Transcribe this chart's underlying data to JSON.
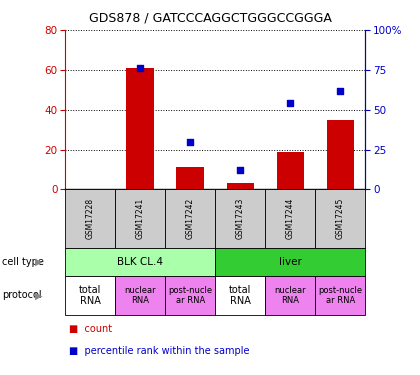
{
  "title": "GDS878 / GATCCCAGGCTGGGCCGGGA",
  "samples": [
    "GSM17228",
    "GSM17241",
    "GSM17242",
    "GSM17243",
    "GSM17244",
    "GSM17245"
  ],
  "counts": [
    0,
    61,
    11,
    3,
    19,
    35
  ],
  "percentiles": [
    null,
    76,
    30,
    12,
    54,
    62
  ],
  "cell_types": [
    {
      "label": "BLK CL.4",
      "span": [
        0,
        3
      ],
      "color": "#aaffaa"
    },
    {
      "label": "liver",
      "span": [
        3,
        6
      ],
      "color": "#33cc33"
    }
  ],
  "protocols": [
    {
      "label": "total\nRNA",
      "color": "#ffffff",
      "fontsize": 7
    },
    {
      "label": "nuclear\nRNA",
      "color": "#ee82ee",
      "fontsize": 6
    },
    {
      "label": "post-nucle\nar RNA",
      "color": "#ee82ee",
      "fontsize": 6
    },
    {
      "label": "total\nRNA",
      "color": "#ffffff",
      "fontsize": 7
    },
    {
      "label": "nuclear\nRNA",
      "color": "#ee82ee",
      "fontsize": 6
    },
    {
      "label": "post-nucle\nar RNA",
      "color": "#ee82ee",
      "fontsize": 6
    }
  ],
  "bar_color": "#cc0000",
  "scatter_color": "#0000cc",
  "left_ylim": [
    0,
    80
  ],
  "right_ylim": [
    0,
    100
  ],
  "left_yticks": [
    0,
    20,
    40,
    60,
    80
  ],
  "right_yticks": [
    0,
    25,
    50,
    75,
    100
  ],
  "right_yticklabels": [
    "0",
    "25",
    "50",
    "75",
    "100%"
  ],
  "left_ycolor": "#cc0000",
  "right_ycolor": "#0000cc",
  "sample_bg_color": "#cccccc",
  "legend_count_color": "#cc0000",
  "legend_pct_color": "#0000cc"
}
